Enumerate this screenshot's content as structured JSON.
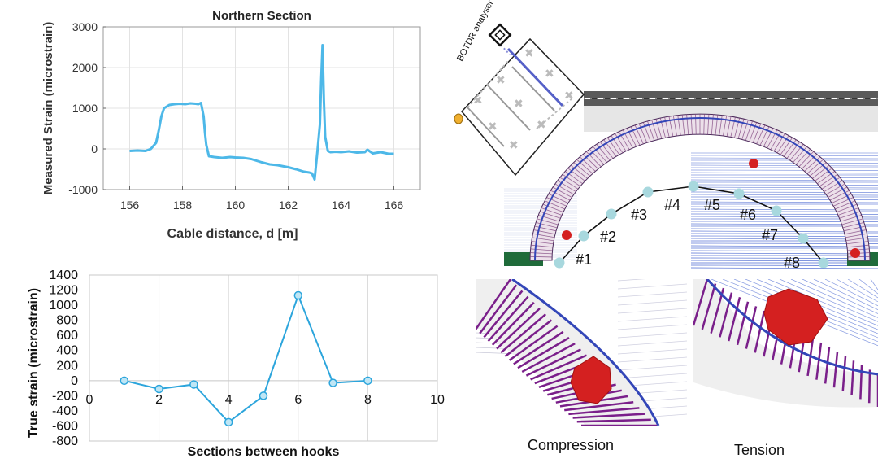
{
  "chart_data": [
    {
      "type": "line",
      "title": "Northern Section",
      "xlabel": "Cable distance, d [m]",
      "ylabel": "Measured Strain (microstrain)",
      "xlim": [
        155,
        167
      ],
      "ylim": [
        -1000,
        3000
      ],
      "xticks": [
        156,
        158,
        160,
        162,
        164,
        166
      ],
      "yticks": [
        -1000,
        0,
        1000,
        2000,
        3000
      ],
      "grid": true,
      "color": "#4db8e8",
      "series": [
        {
          "x": [
            156.0,
            156.3,
            156.6,
            156.8,
            157.0,
            157.1,
            157.2,
            157.3,
            157.5,
            157.7,
            157.9,
            158.1,
            158.3,
            158.5,
            158.6,
            158.7,
            158.8,
            158.85,
            158.9,
            159.0,
            159.2,
            159.5,
            159.8,
            160.0,
            160.3,
            160.6,
            161.0,
            161.3,
            161.6,
            162.0,
            162.3,
            162.6,
            162.8,
            162.9,
            163.0,
            163.1,
            163.2,
            163.25,
            163.3,
            163.35,
            163.4,
            163.5,
            163.6,
            163.8,
            164.0,
            164.3,
            164.6,
            164.9,
            165.0,
            165.2,
            165.5,
            165.8,
            166.0
          ],
          "y": [
            -50,
            -40,
            -50,
            0,
            150,
            450,
            800,
            1000,
            1080,
            1100,
            1110,
            1100,
            1120,
            1110,
            1100,
            1130,
            800,
            400,
            100,
            -180,
            -200,
            -220,
            -200,
            -210,
            -220,
            -250,
            -330,
            -380,
            -400,
            -450,
            -500,
            -560,
            -580,
            -600,
            -750,
            -100,
            600,
            1700,
            2550,
            1200,
            300,
            -50,
            -80,
            -70,
            -80,
            -60,
            -90,
            -80,
            -20,
            -110,
            -80,
            -120,
            -120
          ]
        }
      ]
    },
    {
      "type": "line",
      "title": "",
      "xlabel": "Sections between hooks",
      "ylabel": "True strain (microstrain)",
      "xlim": [
        0,
        10
      ],
      "ylim": [
        -800,
        1400
      ],
      "xticks": [
        0,
        2,
        4,
        6,
        8,
        10
      ],
      "yticks": [
        -800,
        -600,
        -400,
        -200,
        0,
        200,
        400,
        600,
        800,
        1000,
        1200,
        1400
      ],
      "grid": true,
      "color": "#2ca5dc",
      "series": [
        {
          "x": [
            1,
            2,
            3,
            4,
            5,
            6,
            7,
            8
          ],
          "y": [
            0,
            -110,
            -50,
            -550,
            -200,
            1130,
            -30,
            0
          ]
        }
      ]
    }
  ],
  "diagram": {
    "analyser_label": "BOTDR analyser",
    "hook_labels": [
      "#1",
      "#2",
      "#3",
      "#4",
      "#5",
      "#6",
      "#7",
      "#8"
    ],
    "compression_label": "Compression",
    "tension_label": "Tension"
  },
  "colors": {
    "arch_fill": "#ece0ea",
    "arch_hatch": "#7a3d7a",
    "soil_lines": "#3355cc",
    "ground_green": "#1f6b3a",
    "hook_dot": "#a8d8de",
    "damage_red": "#d42020"
  }
}
